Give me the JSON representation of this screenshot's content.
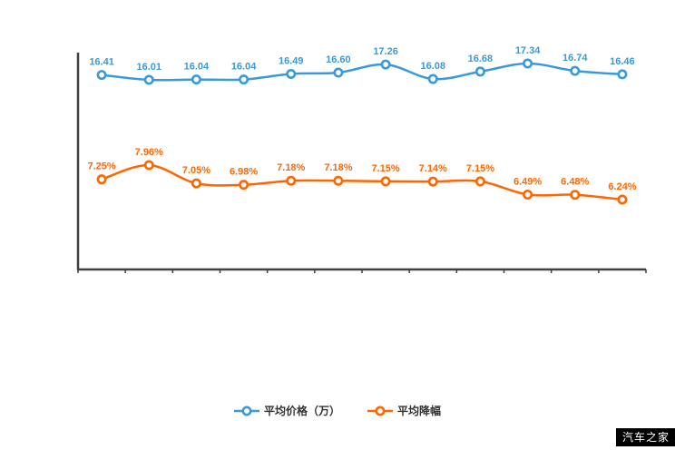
{
  "chart_data": {
    "type": "line",
    "title": "",
    "xlabel": "",
    "ylabel": "",
    "x_count": 12,
    "x_tick_labels": [
      "",
      "",
      "",
      "",
      "",
      "",
      "",
      "",
      "",
      "",
      "",
      ""
    ],
    "grid": false,
    "legend_position": "bottom",
    "axis_color": "#404040",
    "series": [
      {
        "name": "平均价格（万）",
        "color": "#3a9ad9",
        "values": [
          16.41,
          16.01,
          16.04,
          16.04,
          16.49,
          16.6,
          17.26,
          16.08,
          16.68,
          17.34,
          16.74,
          16.46
        ],
        "labels": [
          "16.41",
          "16.01",
          "16.04",
          "16.04",
          "16.49",
          "16.60",
          "17.26",
          "16.08",
          "16.68",
          "17.34",
          "16.74",
          "16.46"
        ]
      },
      {
        "name": "平均降幅",
        "color": "#ff6600",
        "values": [
          7.25,
          7.96,
          7.05,
          6.98,
          7.18,
          7.18,
          7.15,
          7.14,
          7.15,
          6.49,
          6.48,
          6.24
        ],
        "labels": [
          "7.25%",
          "7.96%",
          "7.05%",
          "6.98%",
          "7.18%",
          "7.18%",
          "7.15%",
          "7.14%",
          "7.15%",
          "6.49%",
          "6.48%",
          "6.24%"
        ]
      }
    ]
  },
  "legend": {
    "items": [
      {
        "label": "平均价格（万）",
        "color": "#3a9ad9"
      },
      {
        "label": "平均降幅",
        "color": "#ff6600"
      }
    ]
  },
  "watermark": {
    "text": "汽车之家"
  }
}
